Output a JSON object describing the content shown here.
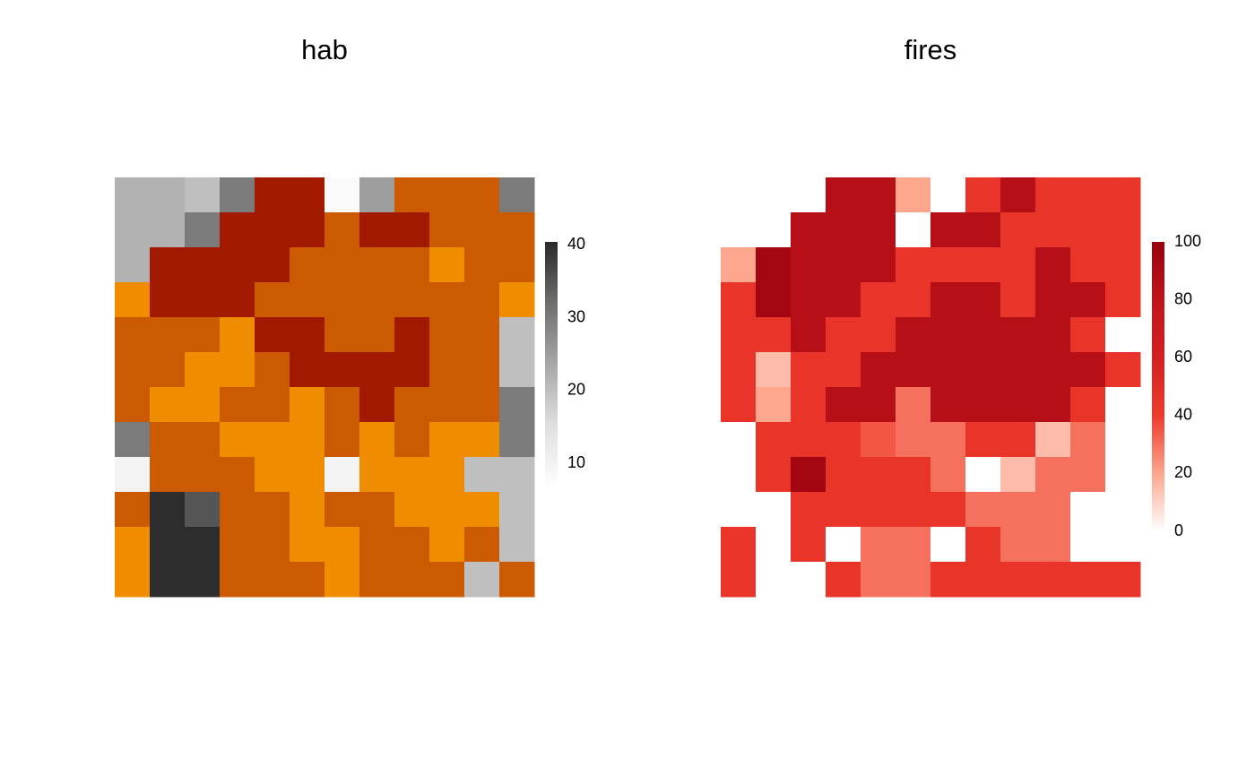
{
  "chart_data": [
    {
      "type": "heatmap",
      "title": "hab",
      "zlim": [
        6.6,
        40.4
      ],
      "zticks": [
        10,
        20,
        30,
        40
      ],
      "palette": [
        "#ffffff",
        "#e0e0e0",
        "#a8a8a8",
        "#6e6e6e",
        "#2a2a2a"
      ],
      "overlay_colors": [
        "#a11a00",
        "#cc5a00",
        "#f08c00"
      ],
      "values": [
        [
          22,
          22,
          20,
          30,
          35,
          20,
          8,
          25,
          28,
          25,
          30,
          30
        ],
        [
          22,
          22,
          30,
          35,
          35,
          30,
          8,
          30,
          28,
          30,
          30,
          35
        ],
        [
          22,
          35,
          38,
          35,
          30,
          30,
          30,
          30,
          35,
          30,
          28,
          30
        ],
        [
          25,
          35,
          38,
          38,
          30,
          30,
          30,
          30,
          35,
          30,
          25,
          28
        ],
        [
          30,
          30,
          35,
          30,
          10,
          30,
          30,
          35,
          30,
          28,
          25,
          20
        ],
        [
          30,
          30,
          38,
          38,
          30,
          30,
          30,
          35,
          25,
          25,
          25,
          20
        ],
        [
          30,
          30,
          38,
          38,
          30,
          30,
          38,
          40,
          25,
          30,
          30,
          30
        ],
        [
          30,
          30,
          38,
          38,
          20,
          30,
          38,
          40,
          20,
          10,
          30,
          30
        ],
        [
          10,
          35,
          10,
          25,
          30,
          10,
          10,
          10,
          10,
          10,
          20,
          20
        ],
        [
          10,
          40,
          35,
          10,
          30,
          20,
          10,
          10,
          10,
          20,
          20,
          20
        ],
        [
          10,
          40,
          40,
          25,
          30,
          30,
          20,
          30,
          30,
          30,
          20,
          20
        ],
        [
          10,
          40,
          40,
          20,
          30,
          20,
          30,
          25,
          30,
          30,
          20,
          20
        ]
      ],
      "overlay": [
        [
          0,
          0,
          0,
          0,
          1,
          1,
          0,
          0,
          2,
          2,
          2,
          0
        ],
        [
          0,
          0,
          0,
          1,
          1,
          1,
          2,
          1,
          1,
          2,
          2,
          2
        ],
        [
          0,
          1,
          1,
          1,
          1,
          2,
          2,
          2,
          2,
          3,
          2,
          2
        ],
        [
          3,
          1,
          1,
          1,
          2,
          2,
          2,
          2,
          2,
          2,
          2,
          3
        ],
        [
          2,
          2,
          2,
          3,
          1,
          1,
          2,
          2,
          1,
          2,
          2,
          0
        ],
        [
          2,
          2,
          3,
          3,
          2,
          1,
          1,
          1,
          1,
          2,
          2,
          0
        ],
        [
          2,
          3,
          3,
          2,
          2,
          3,
          2,
          1,
          2,
          2,
          2,
          0
        ],
        [
          0,
          2,
          2,
          3,
          3,
          3,
          2,
          3,
          2,
          3,
          3,
          0
        ],
        [
          0,
          2,
          2,
          2,
          3,
          3,
          0,
          3,
          3,
          3,
          0,
          0
        ],
        [
          2,
          0,
          0,
          2,
          2,
          3,
          2,
          2,
          3,
          3,
          3,
          0
        ],
        [
          3,
          0,
          0,
          2,
          2,
          3,
          3,
          2,
          2,
          3,
          2,
          0
        ],
        [
          3,
          0,
          0,
          2,
          2,
          2,
          3,
          2,
          2,
          2,
          0,
          2
        ]
      ]
    },
    {
      "type": "heatmap",
      "title": "fires",
      "zlim": [
        0,
        100
      ],
      "zticks": [
        0,
        20,
        40,
        60,
        80,
        100
      ],
      "palette": [
        "#ffffff",
        "#fca68e",
        "#ef3b2c",
        "#d42020",
        "#c0141b",
        "#99000d"
      ],
      "values": [
        [
          0,
          0,
          0,
          85,
          85,
          20,
          0,
          45,
          85,
          45,
          45,
          45
        ],
        [
          0,
          0,
          85,
          85,
          85,
          0,
          85,
          85,
          45,
          45,
          45,
          45
        ],
        [
          20,
          95,
          85,
          85,
          85,
          45,
          45,
          45,
          45,
          85,
          45,
          45
        ],
        [
          45,
          95,
          85,
          85,
          45,
          45,
          85,
          85,
          45,
          85,
          85,
          45
        ],
        [
          45,
          45,
          85,
          45,
          45,
          85,
          85,
          85,
          85,
          85,
          45,
          0
        ],
        [
          45,
          15,
          45,
          45,
          85,
          85,
          85,
          85,
          85,
          85,
          85,
          45
        ],
        [
          45,
          20,
          45,
          85,
          85,
          30,
          85,
          85,
          85,
          85,
          45,
          0
        ],
        [
          0,
          45,
          45,
          45,
          35,
          30,
          30,
          45,
          45,
          15,
          30,
          0
        ],
        [
          0,
          45,
          95,
          45,
          45,
          45,
          30,
          0,
          15,
          30,
          30,
          0
        ],
        [
          0,
          0,
          45,
          45,
          45,
          45,
          45,
          30,
          30,
          30,
          0,
          0
        ],
        [
          45,
          0,
          45,
          0,
          30,
          30,
          0,
          45,
          30,
          30,
          0,
          0
        ],
        [
          45,
          0,
          0,
          45,
          30,
          30,
          45,
          45,
          45,
          45,
          45,
          45
        ]
      ]
    }
  ]
}
